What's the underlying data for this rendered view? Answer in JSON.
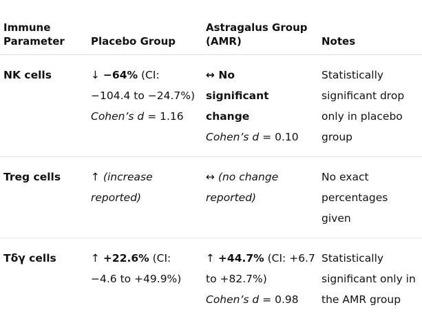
{
  "table": {
    "header": [
      "Immune Parameter",
      "Placebo Group",
      "Astragalus Group (AMR)",
      "Notes"
    ],
    "rows": [
      [
        [
          "NK cells"
        ],
        [
          "↓ ",
          "−64%",
          " (CI: −104.4 to −24.7%)",
          "Cohen’s d",
          " = 1.16"
        ],
        [
          "↔ No significant change",
          "Cohen’s d",
          " = 0.10"
        ],
        [
          "Statistically significant drop only in placebo group"
        ]
      ],
      [
        [
          "Treg cells"
        ],
        [
          "↑ ",
          "(increase reported)"
        ],
        [
          "↔ ",
          "(no change reported)"
        ],
        [
          "No exact percentages given"
        ]
      ],
      [
        [
          "Tδγ cells"
        ],
        [
          "↑ ",
          "+22.6%",
          " (CI: −4.6 to +49.9%)"
        ],
        [
          "↑ ",
          "+44.7%",
          " (CI: +6.7 to +82.7%)",
          "Cohen’s d",
          " = 0.98"
        ],
        [
          "Statistically significant only in the AMR group"
        ]
      ]
    ]
  }
}
